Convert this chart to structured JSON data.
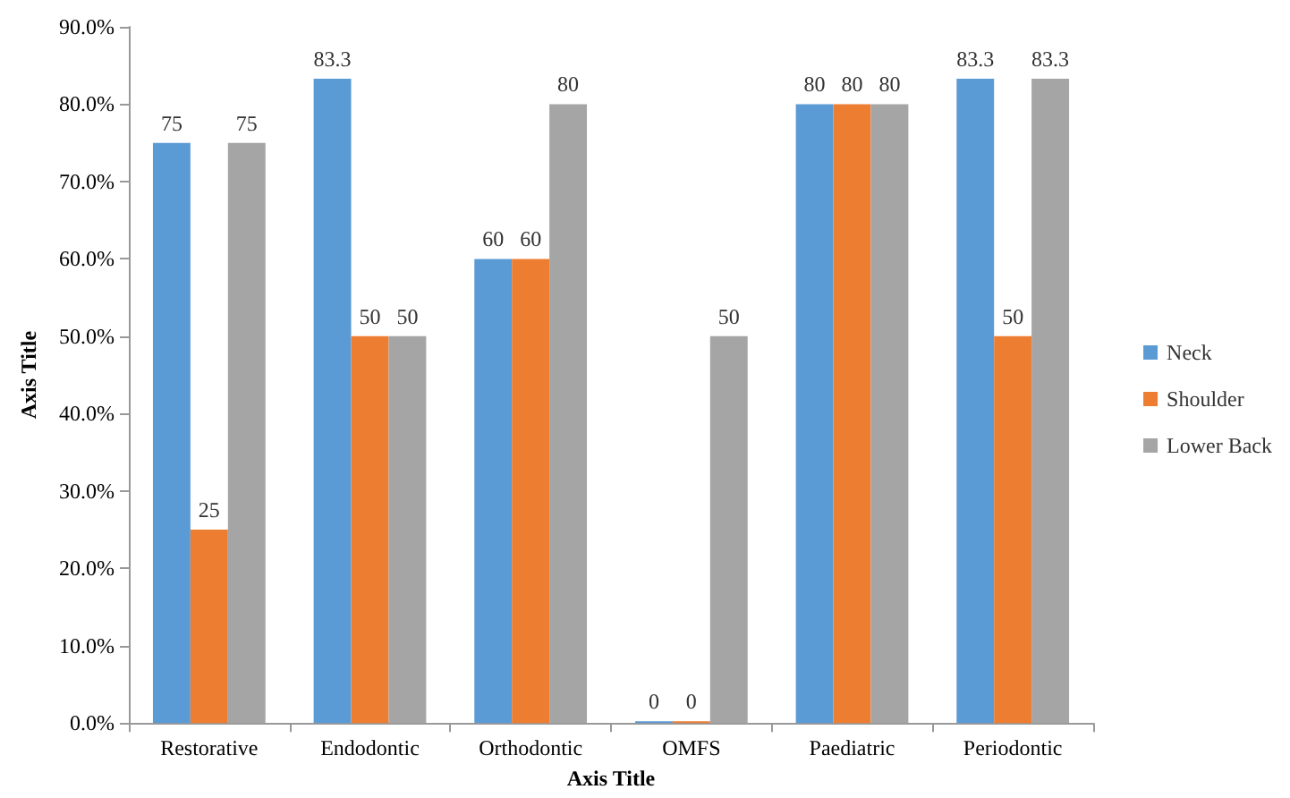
{
  "chart_data": {
    "type": "bar",
    "xlabel": "Axis Title",
    "ylabel": "Axis Title",
    "categories": [
      "Restorative",
      "Endodontic",
      "Orthodontic",
      "OMFS",
      "Paediatric",
      "Periodontic"
    ],
    "series": [
      {
        "name": "Neck",
        "color": "#5b9bd5",
        "values": [
          75,
          83.3,
          60,
          0,
          80,
          83.3
        ]
      },
      {
        "name": "Shoulder",
        "color": "#ed7d31",
        "values": [
          25,
          50,
          60,
          0,
          80,
          50
        ]
      },
      {
        "name": "Lower Back",
        "color": "#a5a5a5",
        "values": [
          75,
          50,
          80,
          50,
          80,
          83.3
        ]
      }
    ],
    "ylim": [
      0,
      90
    ],
    "yticks": [
      {
        "value": 0,
        "label": "0.0%"
      },
      {
        "value": 10,
        "label": "10.0%"
      },
      {
        "value": 20,
        "label": "20.0%"
      },
      {
        "value": 30,
        "label": "30.0%"
      },
      {
        "value": 40,
        "label": "40.0%"
      },
      {
        "value": 50,
        "label": "50.0%"
      },
      {
        "value": 60,
        "label": "60.0%"
      },
      {
        "value": 70,
        "label": "70.0%"
      },
      {
        "value": 80,
        "label": "80.0%"
      },
      {
        "value": 90,
        "label": "90.0%"
      }
    ],
    "data_labels": true,
    "legend": "right",
    "grid": false
  }
}
